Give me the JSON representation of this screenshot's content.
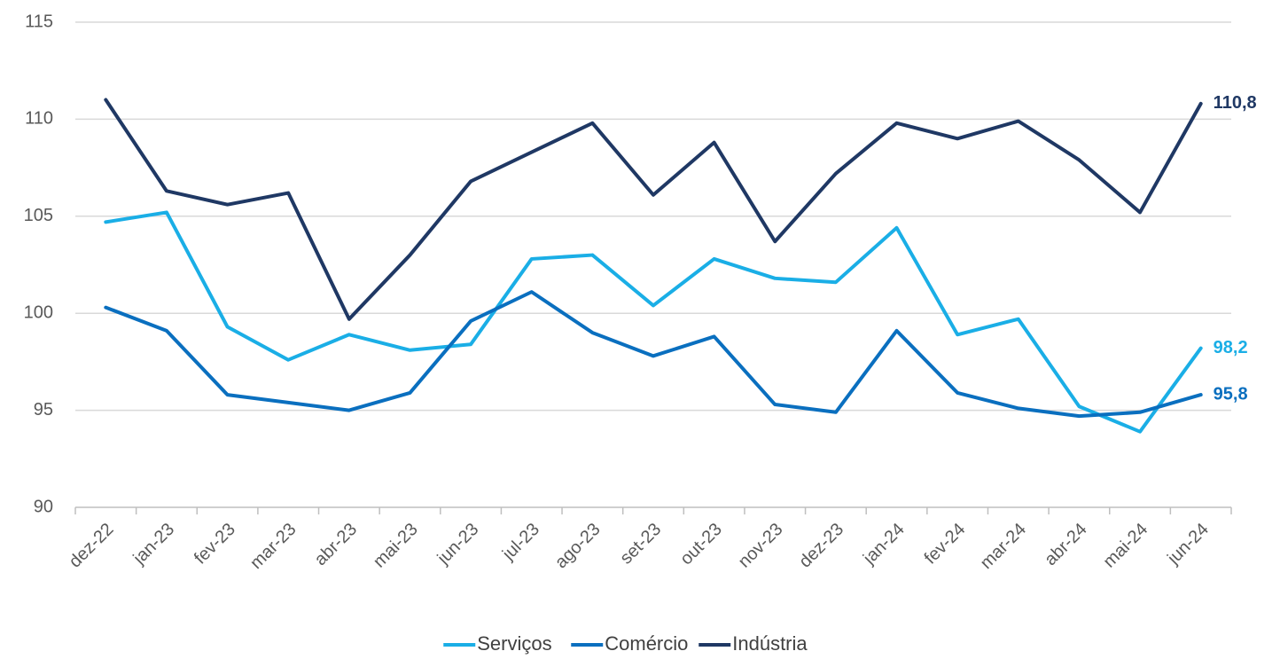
{
  "chart_data": {
    "type": "line",
    "categories": [
      "dez-22",
      "jan-23",
      "fev-23",
      "mar-23",
      "abr-23",
      "mai-23",
      "jun-23",
      "jul-23",
      "ago-23",
      "set-23",
      "out-23",
      "nov-23",
      "dez-23",
      "jan-24",
      "fev-24",
      "mar-24",
      "abr-24",
      "mai-24",
      "jun-24"
    ],
    "series": [
      {
        "name": "Serviços",
        "color": "#1aaee6",
        "values": [
          104.7,
          105.2,
          99.3,
          97.6,
          98.9,
          98.1,
          98.4,
          102.8,
          103.0,
          100.4,
          102.8,
          101.8,
          101.6,
          104.4,
          98.9,
          99.7,
          95.2,
          93.9,
          98.2
        ],
        "value_labels": [
          null,
          null,
          null,
          null,
          null,
          null,
          null,
          null,
          null,
          null,
          null,
          null,
          null,
          null,
          null,
          null,
          null,
          null,
          "98,2"
        ]
      },
      {
        "name": "Comércio",
        "color": "#0a6fbf",
        "values": [
          100.3,
          99.1,
          95.8,
          95.4,
          95.0,
          95.9,
          99.6,
          101.1,
          99.0,
          97.8,
          98.8,
          95.3,
          94.9,
          99.1,
          95.9,
          95.1,
          94.7,
          94.9,
          95.8
        ],
        "value_labels": [
          null,
          null,
          null,
          null,
          null,
          null,
          null,
          null,
          null,
          null,
          null,
          null,
          null,
          null,
          null,
          null,
          null,
          null,
          "95,8"
        ]
      },
      {
        "name": "Indústria",
        "color": "#1f3864",
        "values": [
          111.0,
          106.3,
          105.6,
          106.2,
          99.7,
          103.0,
          106.8,
          108.3,
          109.8,
          106.1,
          108.8,
          103.7,
          107.2,
          109.8,
          109.0,
          109.9,
          107.9,
          105.2,
          110.8
        ],
        "value_labels": [
          null,
          null,
          null,
          null,
          null,
          null,
          null,
          null,
          null,
          null,
          null,
          null,
          null,
          null,
          null,
          null,
          null,
          null,
          "110,8"
        ]
      }
    ],
    "ylim": [
      90,
      115
    ],
    "yticks": [
      90,
      95,
      100,
      105,
      110,
      115
    ],
    "grid": true,
    "legend": "bottom"
  }
}
